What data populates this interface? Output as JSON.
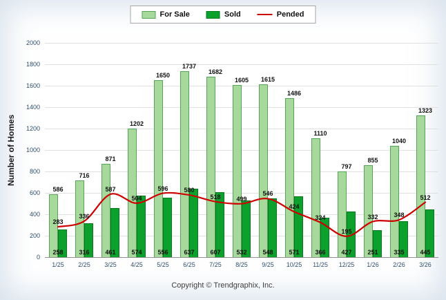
{
  "legend": {
    "items": [
      {
        "label": "For Sale"
      },
      {
        "label": "Sold"
      },
      {
        "label": "Pended"
      }
    ]
  },
  "footer": {
    "copyright": "Copyright © Trendgraphix, Inc."
  },
  "chart_data": {
    "type": "bar",
    "title": "",
    "xlabel": "",
    "ylabel": "Number of Homes",
    "ylim": [
      0,
      2000
    ],
    "ytick_step": 200,
    "grid": true,
    "legend_position": "top",
    "categories": [
      "1/25",
      "2/25",
      "3/25",
      "4/25",
      "5/25",
      "6/25",
      "7/25",
      "8/25",
      "9/25",
      "10/25",
      "11/25",
      "12/25",
      "1/26",
      "2/26",
      "3/26"
    ],
    "series": [
      {
        "name": "For Sale",
        "type": "bar",
        "color": "#a6d99b",
        "border": "#55a355",
        "values": [
          586,
          716,
          871,
          1202,
          1650,
          1737,
          1682,
          1605,
          1615,
          1486,
          1110,
          797,
          855,
          1040,
          1323
        ]
      },
      {
        "name": "Sold",
        "type": "bar",
        "color": "#0ca02c",
        "border": "#077a1e",
        "values": [
          258,
          316,
          461,
          574,
          556,
          637,
          607,
          532,
          548,
          571,
          366,
          427,
          251,
          335,
          445
        ]
      },
      {
        "name": "Pended",
        "type": "line",
        "color": "#cc0000",
        "values": [
          283,
          336,
          587,
          504,
          596,
          580,
          518,
          499,
          546,
          424,
          324,
          195,
          332,
          348,
          512
        ]
      }
    ]
  }
}
